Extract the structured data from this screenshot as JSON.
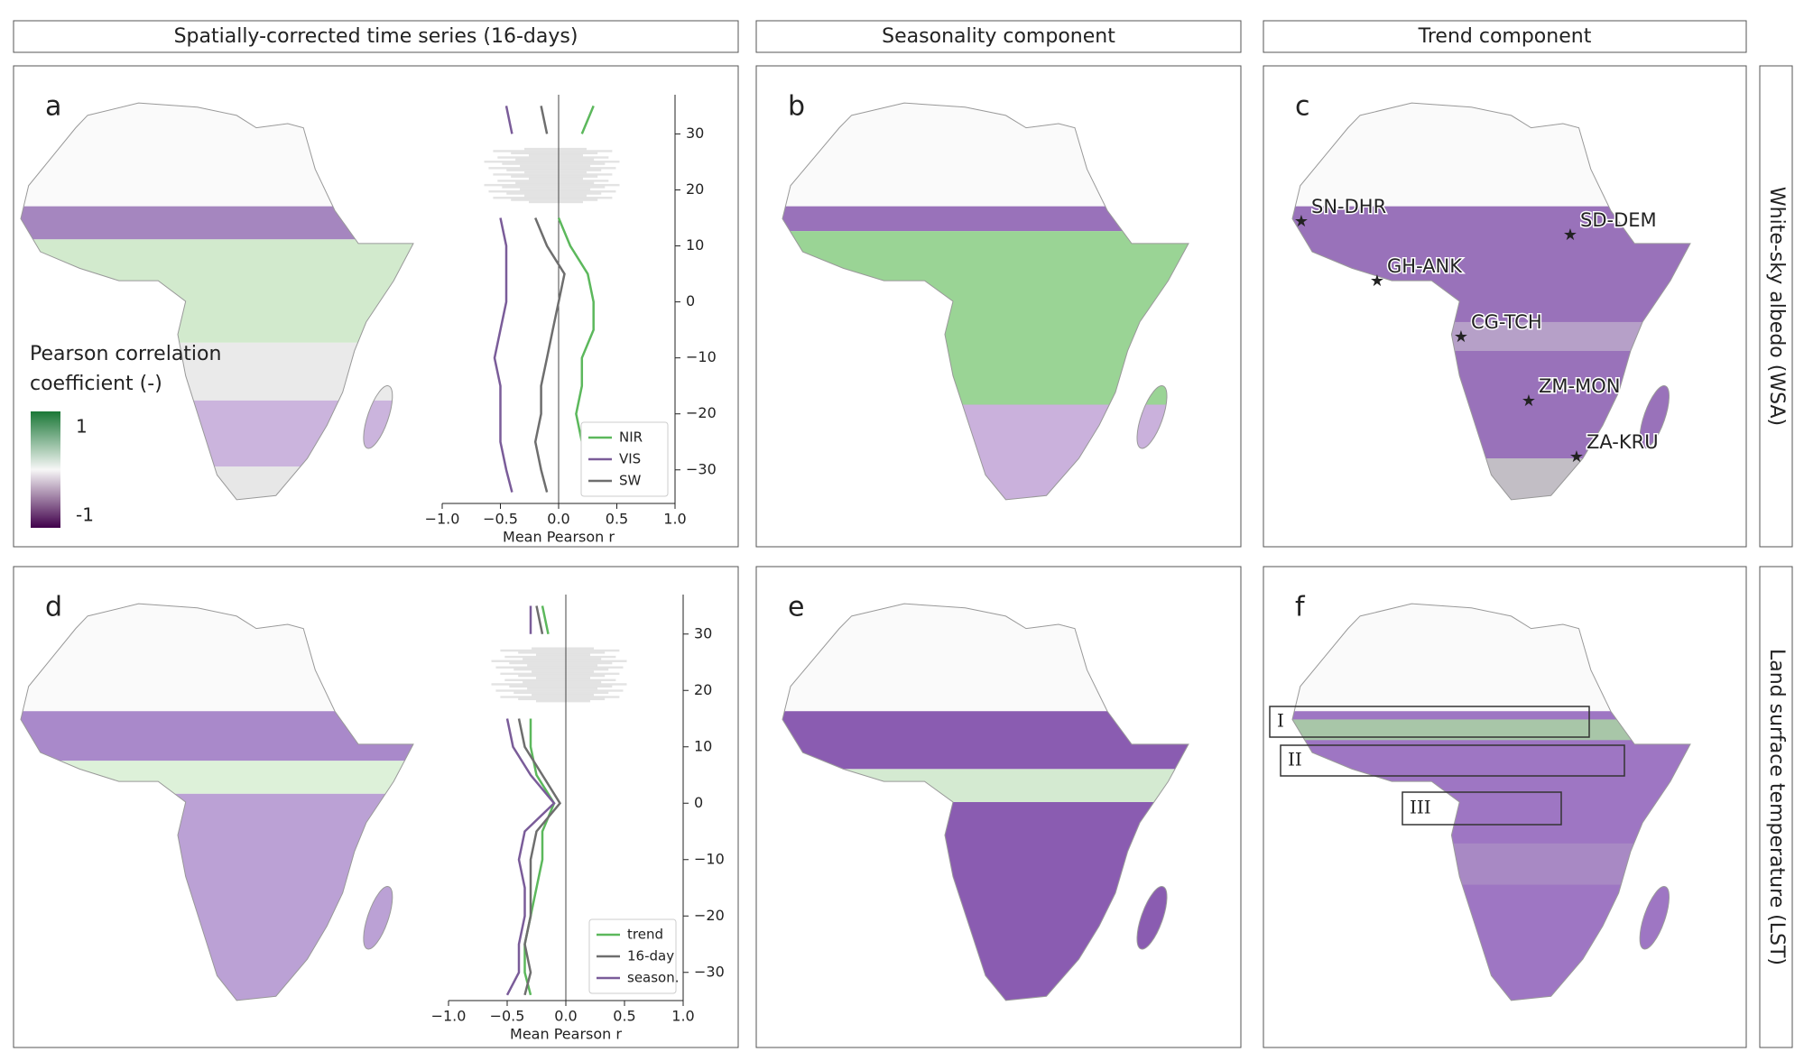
{
  "column_headers": [
    "Spatially-corrected time series (16-days)",
    "Seasonality component",
    "Trend component"
  ],
  "row_labels": [
    "White-sky albedo (WSA)",
    "Land surface temperature (LST)"
  ],
  "panel_letters": [
    "a",
    "b",
    "c",
    "d",
    "e",
    "f"
  ],
  "colorbar": {
    "title_lines": [
      "Pearson correlation",
      "coefficient (-)"
    ],
    "ticks": [
      1,
      -1
    ]
  },
  "sites": [
    "SN-DHR",
    "GH-ANK",
    "SD-DEM",
    "CG-TCH",
    "ZM-MON",
    "ZA-KRU"
  ],
  "boxes": [
    "I",
    "II",
    "III"
  ],
  "chart_data": [
    {
      "type": "line",
      "xlabel": "Mean Pearson r",
      "y": [
        -34,
        -30,
        -25,
        -20,
        -15,
        -10,
        -5,
        0,
        5,
        10,
        15,
        20,
        25,
        30,
        35
      ],
      "xlim": [
        -1,
        1
      ],
      "xticks": [
        {
          "value": -1,
          "label": "−1.0"
        },
        {
          "value": -0.5,
          "label": "−0.5"
        },
        {
          "value": 0,
          "label": "0.0"
        },
        {
          "value": 0.5,
          "label": "0.5"
        },
        {
          "value": 1,
          "label": "1.0"
        }
      ],
      "ylim": [
        -36,
        37
      ],
      "yticks": [
        {
          "value": -30,
          "label": "−30"
        },
        {
          "value": -20,
          "label": "−20"
        },
        {
          "value": -10,
          "label": "−10"
        },
        0,
        10,
        20,
        30
      ],
      "legend": "lower right",
      "series": [
        {
          "name": "NIR",
          "color": "#5cb85c",
          "values": [
            0.3,
            0.25,
            0.2,
            0.15,
            0.2,
            0.2,
            0.3,
            0.3,
            0.25,
            0.1,
            0.0,
            null,
            null,
            0.2,
            0.3
          ]
        },
        {
          "name": "VIS",
          "color": "#7a5c99",
          "values": [
            -0.4,
            -0.45,
            -0.5,
            -0.5,
            -0.5,
            -0.55,
            -0.5,
            -0.45,
            -0.45,
            -0.45,
            -0.5,
            null,
            null,
            -0.4,
            -0.45
          ]
        },
        {
          "name": "SW",
          "color": "#6e6e6e",
          "values": [
            -0.1,
            -0.15,
            -0.2,
            -0.15,
            -0.15,
            -0.1,
            -0.05,
            0.0,
            0.05,
            -0.1,
            -0.2,
            null,
            null,
            -0.1,
            -0.15
          ]
        }
      ]
    },
    {
      "type": "line",
      "xlabel": "Mean Pearson r",
      "y": [
        -34,
        -30,
        -25,
        -20,
        -15,
        -10,
        -5,
        0,
        5,
        10,
        15,
        20,
        25,
        30,
        35
      ],
      "xlim": [
        -1,
        1
      ],
      "xticks": [
        {
          "value": -1,
          "label": "−1.0"
        },
        {
          "value": -0.5,
          "label": "−0.5"
        },
        {
          "value": 0,
          "label": "0.0"
        },
        {
          "value": 0.5,
          "label": "0.5"
        },
        {
          "value": 1,
          "label": "1.0"
        }
      ],
      "ylim": [
        -35,
        37
      ],
      "yticks": [
        {
          "value": -30,
          "label": "−30"
        },
        {
          "value": -20,
          "label": "−20"
        },
        {
          "value": -10,
          "label": "−10"
        },
        0,
        10,
        20,
        30
      ],
      "legend": "lower right",
      "series": [
        {
          "name": "trend",
          "color": "#5cb85c",
          "values": [
            -0.3,
            -0.35,
            -0.35,
            -0.3,
            -0.25,
            -0.2,
            -0.2,
            -0.1,
            -0.25,
            -0.3,
            -0.3,
            null,
            null,
            -0.15,
            -0.2
          ]
        },
        {
          "name": "16-day",
          "color": "#6e6e6e",
          "values": [
            -0.35,
            -0.3,
            -0.35,
            -0.3,
            -0.3,
            -0.3,
            -0.25,
            -0.05,
            -0.2,
            -0.35,
            -0.4,
            null,
            null,
            -0.2,
            -0.25
          ]
        },
        {
          "name": "season.",
          "color": "#7a5c99",
          "values": [
            -0.5,
            -0.4,
            -0.4,
            -0.35,
            -0.35,
            -0.4,
            -0.35,
            -0.1,
            -0.3,
            -0.45,
            -0.5,
            null,
            null,
            -0.3,
            -0.3
          ]
        }
      ]
    }
  ]
}
